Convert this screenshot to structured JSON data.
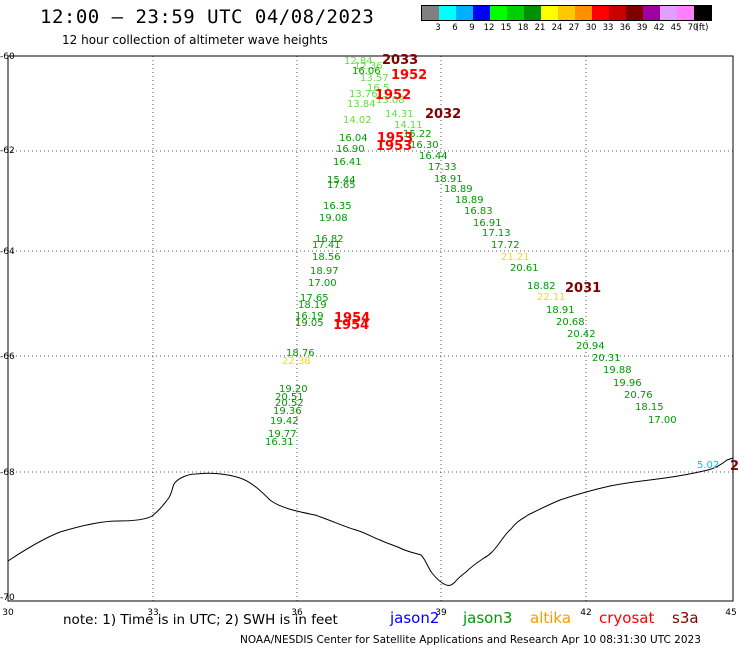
{
  "header": {
    "title": "12:00 – 23:59 UTC 04/08/2023",
    "subtitle": "12 hour collection of altimeter wave heights"
  },
  "legend": {
    "colors": [
      "#808080",
      "#00ffff",
      "#00b0ff",
      "#0000ff",
      "#00ff00",
      "#00d000",
      "#009000",
      "#ffff00",
      "#ffc800",
      "#ff9000",
      "#ff0000",
      "#c80000",
      "#800000",
      "#a000a0",
      "#e0a0ff",
      "#ff80ff",
      "#000000"
    ],
    "labels": [
      "3",
      "6",
      "9",
      "12",
      "15",
      "18",
      "21",
      "24",
      "27",
      "30",
      "33",
      "36",
      "39",
      "42",
      "45",
      "70",
      "(ft)"
    ]
  },
  "axes": {
    "lon_labels": [
      "30",
      "33",
      "36",
      "39",
      "42",
      "45"
    ],
    "lat_labels": [
      "-60",
      "-62",
      "-64",
      "-66",
      "-68",
      "-70"
    ]
  },
  "observations": [
    {
      "t": "12.84",
      "c": "#66dd44"
    },
    {
      "t": "12.36",
      "c": "#66dd44"
    },
    {
      "t": "16.06",
      "c": "#009900"
    },
    {
      "t": "13.57",
      "c": "#66dd44"
    },
    {
      "t": "16.5",
      "c": "#66dd44"
    },
    {
      "t": "13.76",
      "c": "#66dd44"
    },
    {
      "t": "13.08",
      "c": "#66dd44"
    },
    {
      "t": "13.84",
      "c": "#66dd44"
    },
    {
      "t": "14.31",
      "c": "#66dd44"
    },
    {
      "t": "14.02",
      "c": "#66dd44"
    },
    {
      "t": "14.11",
      "c": "#66dd44"
    },
    {
      "t": "15.22",
      "c": "#009900"
    },
    {
      "t": "16.04",
      "c": "#009900"
    },
    {
      "t": "16.90",
      "c": "#009900"
    },
    {
      "t": "16.30",
      "c": "#009900"
    },
    {
      "t": "16.44",
      "c": "#009900"
    },
    {
      "t": "16.41",
      "c": "#009900"
    },
    {
      "t": "17.33",
      "c": "#009900"
    },
    {
      "t": "15.44",
      "c": "#009900"
    },
    {
      "t": "17.65",
      "c": "#009900"
    },
    {
      "t": "18.91",
      "c": "#009900"
    },
    {
      "t": "18.89",
      "c": "#009900"
    },
    {
      "t": "18.89",
      "c": "#009900"
    },
    {
      "t": "16.35",
      "c": "#009900"
    },
    {
      "t": "16.83",
      "c": "#009900"
    },
    {
      "t": "19.08",
      "c": "#009900"
    },
    {
      "t": "16.91",
      "c": "#009900"
    },
    {
      "t": "17.13",
      "c": "#009900"
    },
    {
      "t": "16.82",
      "c": "#009900"
    },
    {
      "t": "17.41",
      "c": "#009900"
    },
    {
      "t": "17.72",
      "c": "#009900"
    },
    {
      "t": "18.56",
      "c": "#009900"
    },
    {
      "t": "21.21",
      "c": "#e6e600"
    },
    {
      "t": "20.61",
      "c": "#009900"
    },
    {
      "t": "18.97",
      "c": "#009900"
    },
    {
      "t": "17.00",
      "c": "#009900"
    },
    {
      "t": "18.82",
      "c": "#009900"
    },
    {
      "t": "22.11",
      "c": "#e6e600"
    },
    {
      "t": "17.65",
      "c": "#009900"
    },
    {
      "t": "18.19",
      "c": "#009900"
    },
    {
      "t": "18.91",
      "c": "#009900"
    },
    {
      "t": "16.19",
      "c": "#009900"
    },
    {
      "t": "19.05",
      "c": "#009900"
    },
    {
      "t": "20.68",
      "c": "#009900"
    },
    {
      "t": "20.42",
      "c": "#009900"
    },
    {
      "t": "20.94",
      "c": "#009900"
    },
    {
      "t": "18.76",
      "c": "#009900"
    },
    {
      "t": "22.38",
      "c": "#e6e600"
    },
    {
      "t": "20.31",
      "c": "#009900"
    },
    {
      "t": "19.88",
      "c": "#009900"
    },
    {
      "t": "19.20",
      "c": "#009900"
    },
    {
      "t": "19.96",
      "c": "#009900"
    },
    {
      "t": "20.51",
      "c": "#009900"
    },
    {
      "t": "20.52",
      "c": "#009900"
    },
    {
      "t": "20.76",
      "c": "#009900"
    },
    {
      "t": "19.36",
      "c": "#009900"
    },
    {
      "t": "18.15",
      "c": "#009900"
    },
    {
      "t": "19.42",
      "c": "#009900"
    },
    {
      "t": "17.00",
      "c": "#009900"
    },
    {
      "t": "19.77",
      "c": "#009900"
    },
    {
      "t": "16.31",
      "c": "#009900"
    },
    {
      "t": "5.02",
      "c": "#00c8f0"
    }
  ],
  "time_labels": [
    {
      "t": "2033",
      "c": "#800000"
    },
    {
      "t": "1952",
      "c": "#ff0000"
    },
    {
      "t": "1952",
      "c": "#ff0000"
    },
    {
      "t": "2032",
      "c": "#800000"
    },
    {
      "t": "1953",
      "c": "#ff0000"
    },
    {
      "t": "1953",
      "c": "#ff0000"
    },
    {
      "t": "2031",
      "c": "#800000"
    },
    {
      "t": "1954",
      "c": "#ff0000"
    },
    {
      "t": "1954",
      "c": "#ff0000"
    },
    {
      "t": "2",
      "c": "#800000"
    }
  ],
  "footer": {
    "note": "note:  1) Time is in UTC;  2) SWH is in feet",
    "satellites": [
      {
        "name": "jason2",
        "color": "#0000ff"
      },
      {
        "name": "jason3",
        "color": "#009900"
      },
      {
        "name": "altika",
        "color": "#ff9900"
      },
      {
        "name": "cryosat",
        "color": "#ff0000"
      },
      {
        "name": "s3a",
        "color": "#800000"
      }
    ],
    "credit": "NOAA/NESDIS Center for Satellite Applications and Research    Apr 10 08:31:30 UTC 2023"
  }
}
